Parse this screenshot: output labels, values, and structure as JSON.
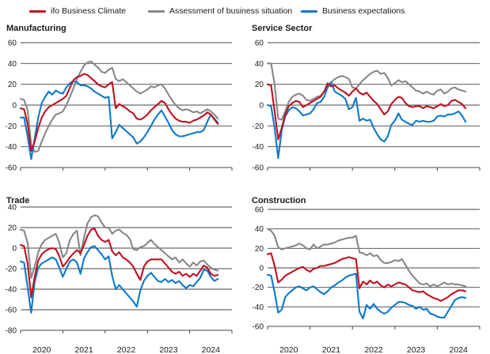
{
  "legend": [
    {
      "label": "ifo Business Climate",
      "color": "#bf1120"
    },
    {
      "label": "Assessment of business situation",
      "color": "#878787"
    },
    {
      "label": "Business expectations",
      "color": "#0d79cc"
    }
  ],
  "chart_data": [
    {
      "type": "line",
      "title": "Manufacturing",
      "x_unit": "month",
      "x_range": [
        "2020-01",
        "2024-09"
      ],
      "x_tick_labels": [
        "2020",
        "2021",
        "2022",
        "2023",
        "2024"
      ],
      "ylim": [
        -60,
        60
      ],
      "yticks": [
        60,
        40,
        20,
        0,
        -20,
        -40,
        -60
      ],
      "grid": true,
      "series": [
        {
          "name": "Assessment of business situation",
          "color": "#878787",
          "values": [
            6,
            5,
            -5,
            -38,
            -45,
            -44,
            -35,
            -27,
            -20,
            -14,
            -9,
            -8,
            -6,
            0,
            8,
            16,
            25,
            32,
            38,
            41,
            42,
            39,
            36,
            32,
            31,
            34,
            36,
            25,
            23,
            25,
            22,
            19,
            16,
            13,
            11,
            13,
            15,
            18,
            17,
            19,
            20,
            16,
            10,
            5,
            0,
            -3,
            -5,
            -4,
            -5,
            -7,
            -6,
            -8,
            -6,
            -4,
            -6,
            -9,
            -13
          ]
        },
        {
          "name": "Business expectations",
          "color": "#0d79cc",
          "values": [
            -12,
            -12,
            -30,
            -52,
            -32,
            -12,
            2,
            8,
            13,
            10,
            14,
            12,
            11,
            17,
            21,
            23,
            22,
            19,
            19,
            18,
            16,
            13,
            11,
            9,
            7,
            8,
            -32,
            -26,
            -19,
            -22,
            -25,
            -28,
            -31,
            -37,
            -35,
            -31,
            -26,
            -20,
            -14,
            -9,
            -5,
            -11,
            -17,
            -24,
            -28,
            -30,
            -30,
            -29,
            -28,
            -27,
            -26,
            -26,
            -24,
            -16,
            -9,
            -13,
            -17
          ]
        },
        {
          "name": "ifo Business Climate",
          "color": "#bf1120",
          "values": [
            -3,
            -4,
            -18,
            -44,
            -35,
            -22,
            -12,
            -6,
            -2,
            0,
            2,
            4,
            6,
            9,
            17,
            24,
            27,
            28,
            30,
            29,
            26,
            23,
            20,
            18,
            17,
            20,
            22,
            -3,
            1,
            -1,
            -3,
            -6,
            -8,
            -13,
            -14,
            -12,
            -9,
            -5,
            -2,
            1,
            4,
            2,
            -4,
            -9,
            -13,
            -15,
            -16,
            -16,
            -17,
            -15,
            -14,
            -12,
            -10,
            -7,
            -9,
            -14,
            -18
          ]
        }
      ]
    },
    {
      "type": "line",
      "title": "Service Sector",
      "x_unit": "month",
      "x_range": [
        "2020-01",
        "2024-09"
      ],
      "x_tick_labels": [
        "2020",
        "2021",
        "2022",
        "2023",
        "2024"
      ],
      "ylim": [
        -60,
        60
      ],
      "yticks": [
        60,
        40,
        20,
        0,
        -20,
        -40,
        -60
      ],
      "grid": true,
      "series": [
        {
          "name": "Assessment of business situation",
          "color": "#878787",
          "values": [
            40,
            40,
            20,
            -13,
            -14,
            -6,
            3,
            8,
            10,
            11,
            9,
            5,
            4,
            6,
            8,
            9,
            13,
            18,
            22,
            25,
            27,
            28,
            27,
            25,
            17,
            16,
            20,
            24,
            27,
            30,
            32,
            33,
            30,
            31,
            26,
            19,
            21,
            24,
            22,
            23,
            20,
            17,
            14,
            13,
            11,
            13,
            11,
            10,
            14,
            15,
            11,
            13,
            16,
            17,
            15,
            14,
            13
          ]
        },
        {
          "name": "Business expectations",
          "color": "#0d79cc",
          "values": [
            0,
            -1,
            -22,
            -51,
            -24,
            -11,
            -5,
            -2,
            -3,
            -6,
            -10,
            -9,
            -8,
            -4,
            2,
            3,
            8,
            17,
            22,
            13,
            11,
            9,
            6,
            -4,
            -2,
            7,
            -15,
            -13,
            -15,
            -14,
            -22,
            -28,
            -33,
            -35,
            -30,
            -19,
            -15,
            -8,
            -14,
            -16,
            -18,
            -19,
            -15,
            -16,
            -15,
            -16,
            -16,
            -15,
            -11,
            -10,
            -11,
            -9,
            -9,
            -8,
            -6,
            -10,
            -16
          ]
        },
        {
          "name": "ifo Business Climate",
          "color": "#bf1120",
          "values": [
            20,
            19,
            -6,
            -33,
            -22,
            -9,
            -1,
            2,
            4,
            3,
            -2,
            0,
            2,
            4,
            6,
            8,
            13,
            21,
            18,
            19,
            16,
            14,
            12,
            9,
            13,
            16,
            12,
            10,
            12,
            8,
            4,
            1,
            -4,
            -9,
            -6,
            1,
            5,
            8,
            7,
            2,
            -1,
            -2,
            -1,
            -1,
            -3,
            -1,
            -2,
            -3,
            -1,
            1,
            -1,
            0,
            4,
            5,
            3,
            1,
            -3
          ]
        }
      ]
    },
    {
      "type": "line",
      "title": "Trade",
      "x_unit": "month",
      "x_range": [
        "2020-01",
        "2024-09"
      ],
      "x_tick_labels": [
        "2020",
        "2021",
        "2022",
        "2023",
        "2024"
      ],
      "ylim": [
        -80,
        40
      ],
      "yticks": [
        40,
        20,
        0,
        -20,
        -40,
        -60,
        -80
      ],
      "grid": true,
      "series": [
        {
          "name": "Assessment of business situation",
          "color": "#878787",
          "values": [
            18,
            17,
            5,
            -29,
            -18,
            -4,
            4,
            8,
            10,
            12,
            14,
            5,
            -9,
            -5,
            8,
            14,
            17,
            -7,
            10,
            24,
            30,
            32,
            31,
            25,
            20,
            20,
            14,
            17,
            18,
            15,
            13,
            9,
            -1,
            -2,
            1,
            2,
            5,
            8,
            4,
            1,
            -2,
            -5,
            -8,
            -11,
            -9,
            -14,
            -11,
            -15,
            -18,
            -14,
            -17,
            -13,
            -12,
            -16,
            -19,
            -21,
            -22
          ]
        },
        {
          "name": "Business expectations",
          "color": "#0d79cc",
          "values": [
            -13,
            -14,
            -38,
            -63,
            -33,
            -19,
            -15,
            -13,
            -11,
            -9,
            -11,
            -19,
            -28,
            -20,
            -13,
            -11,
            -14,
            -25,
            -10,
            -4,
            1,
            2,
            -2,
            -6,
            -11,
            -8,
            -27,
            -40,
            -36,
            -40,
            -44,
            -48,
            -52,
            -57,
            -41,
            -32,
            -27,
            -24,
            -28,
            -32,
            -33,
            -30,
            -33,
            -31,
            -34,
            -32,
            -36,
            -39,
            -36,
            -37,
            -33,
            -29,
            -21,
            -22,
            -28,
            -32,
            -30
          ]
        },
        {
          "name": "ifo Business Climate",
          "color": "#bf1120",
          "values": [
            3,
            2,
            -15,
            -48,
            -28,
            -12,
            -6,
            -3,
            -1,
            0,
            -1,
            -8,
            -18,
            -14,
            -9,
            -5,
            -2,
            -5,
            3,
            12,
            18,
            19,
            12,
            8,
            6,
            8,
            -3,
            -7,
            -4,
            -9,
            -11,
            -14,
            -18,
            -25,
            -31,
            -18,
            -13,
            -11,
            -11,
            -11,
            -11,
            -15,
            -19,
            -23,
            -25,
            -23,
            -27,
            -25,
            -28,
            -25,
            -27,
            -22,
            -17,
            -19,
            -25,
            -27,
            -26
          ]
        }
      ]
    },
    {
      "type": "line",
      "title": "Construction",
      "x_unit": "month",
      "x_range": [
        "2020-01",
        "2024-09"
      ],
      "x_tick_labels": [
        "2020",
        "2021",
        "2022",
        "2023",
        "2024"
      ],
      "ylim": [
        -60,
        60
      ],
      "yticks": [
        60,
        40,
        20,
        0,
        -20,
        -40,
        -60
      ],
      "grid": true,
      "series": [
        {
          "name": "Assessment of business situation",
          "color": "#878787",
          "values": [
            40,
            38,
            33,
            21,
            19,
            20,
            21,
            22,
            23,
            25,
            23,
            20,
            19,
            24,
            20,
            22,
            24,
            24,
            25,
            26,
            28,
            29,
            30,
            31,
            31,
            33,
            16,
            15,
            13,
            15,
            12,
            13,
            8,
            5,
            5,
            6,
            8,
            7,
            9,
            3,
            -3,
            -8,
            -12,
            -16,
            -17,
            -16,
            -19,
            -17,
            -19,
            -17,
            -15,
            -17,
            -16,
            -17,
            -17,
            -18,
            -19
          ]
        },
        {
          "name": "Business expectations",
          "color": "#0d79cc",
          "values": [
            -7,
            -8,
            -25,
            -46,
            -43,
            -30,
            -26,
            -23,
            -20,
            -19,
            -21,
            -23,
            -20,
            -19,
            -22,
            -25,
            -27,
            -24,
            -20,
            -18,
            -15,
            -13,
            -10,
            -8,
            -7,
            -6,
            -45,
            -52,
            -38,
            -42,
            -37,
            -42,
            -45,
            -47,
            -45,
            -41,
            -38,
            -35,
            -35,
            -36,
            -38,
            -39,
            -42,
            -40,
            -43,
            -42,
            -47,
            -48,
            -50,
            -51,
            -51,
            -45,
            -39,
            -33,
            -31,
            -30,
            -31
          ]
        },
        {
          "name": "ifo Business Climate",
          "color": "#bf1120",
          "values": [
            14,
            15,
            2,
            -15,
            -12,
            -8,
            -6,
            -4,
            -2,
            0,
            1,
            -2,
            -4,
            -1,
            0,
            2,
            2,
            3,
            4,
            5,
            7,
            9,
            10,
            11,
            10,
            9,
            -21,
            -14,
            -17,
            -13,
            -16,
            -14,
            -18,
            -20,
            -17,
            -19,
            -17,
            -15,
            -16,
            -17,
            -20,
            -23,
            -24,
            -25,
            -24,
            -27,
            -29,
            -31,
            -32,
            -34,
            -32,
            -30,
            -27,
            -25,
            -23,
            -23,
            -24
          ]
        }
      ]
    }
  ]
}
